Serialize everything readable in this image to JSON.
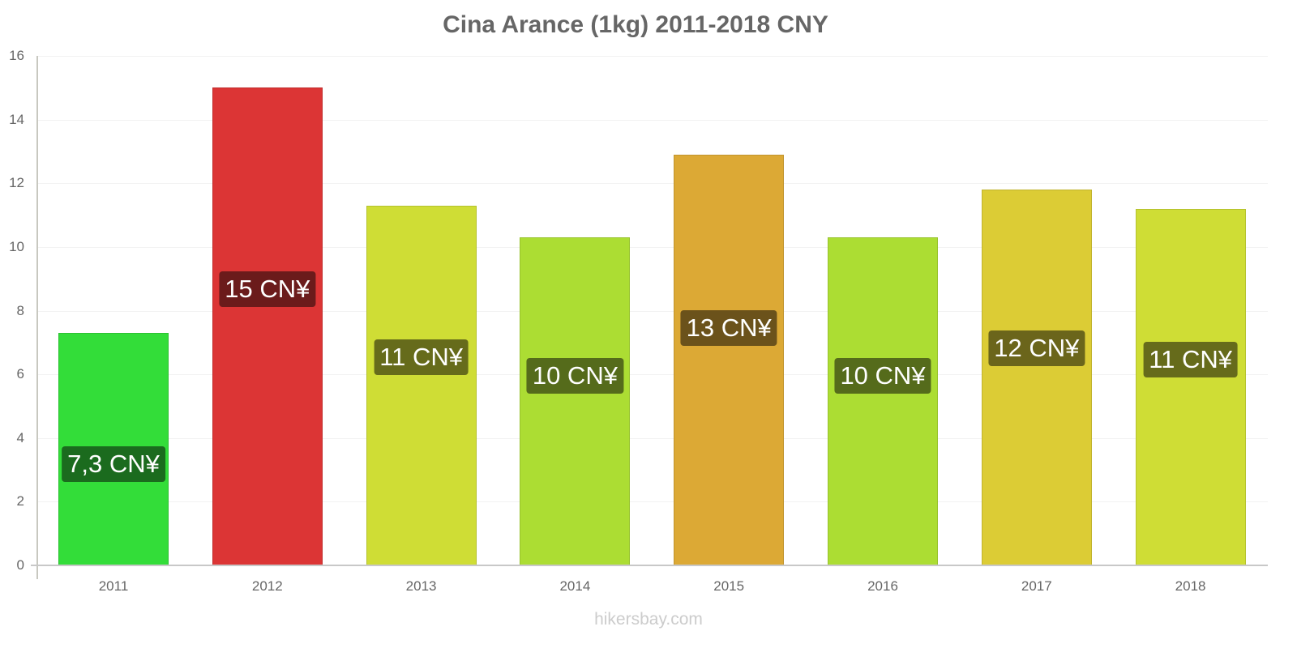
{
  "chart_data": {
    "type": "bar",
    "title": "Cina Arance (1kg) 2011-2018 CNY",
    "xlabel": "",
    "ylabel": "",
    "ylim": [
      0,
      16
    ],
    "yticks": [
      0,
      2,
      4,
      6,
      8,
      10,
      12,
      14,
      16
    ],
    "grid": true,
    "legend": null,
    "categories": [
      "2011",
      "2012",
      "2013",
      "2014",
      "2015",
      "2016",
      "2017",
      "2018"
    ],
    "values": [
      7.3,
      15,
      11.3,
      10.3,
      12.9,
      10.3,
      11.8,
      11.2
    ],
    "data_labels": [
      "7,3 CN¥",
      "15 CN¥",
      "11 CN¥",
      "10 CN¥",
      "13 CN¥",
      "10 CN¥",
      "12 CN¥",
      "11 CN¥"
    ],
    "bar_colors": [
      "#33dd39",
      "#dc3535",
      "#cfdd35",
      "#acdd33",
      "#dca935",
      "#acdd33",
      "#dccc35",
      "#cfdd35"
    ],
    "label_colors": [
      "#1b6b1e",
      "#6b1b1b",
      "#666b1b",
      "#556b1b",
      "#6b521b",
      "#556b1b",
      "#6b651b",
      "#666b1b"
    ]
  },
  "watermark": "hikersbay.com"
}
